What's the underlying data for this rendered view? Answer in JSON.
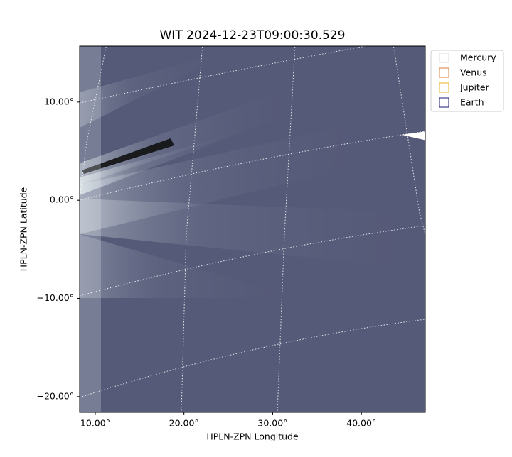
{
  "chart_data": {
    "type": "image",
    "title": "WIT 2024-12-23T09:00:30.529",
    "x_label": "HPLN-ZPN Longitude",
    "y_label": "HPLN-ZPN Latitude",
    "xlim": [
      8.24,
      47.2
    ],
    "ylim": [
      -21.6,
      15.7
    ],
    "xticks": [
      {
        "value": 10,
        "label": "10.00°"
      },
      {
        "value": 20,
        "label": "20.00°"
      },
      {
        "value": 30,
        "label": "30.00°"
      },
      {
        "value": 40,
        "label": "40.00°"
      }
    ],
    "yticks": [
      {
        "value": 10,
        "label": "10.00°"
      },
      {
        "value": 0,
        "label": "0.00°"
      },
      {
        "value": -10,
        "label": "−10.00°"
      },
      {
        "value": -20,
        "label": "−20.00°"
      }
    ],
    "series": [
      {
        "name": "Mercury",
        "color": "#d9d9d9"
      },
      {
        "name": "Venus",
        "color": "#e07b39"
      },
      {
        "name": "Jupiter",
        "color": "#e6b020"
      },
      {
        "name": "Earth",
        "color": "#1a1a70"
      }
    ]
  }
}
